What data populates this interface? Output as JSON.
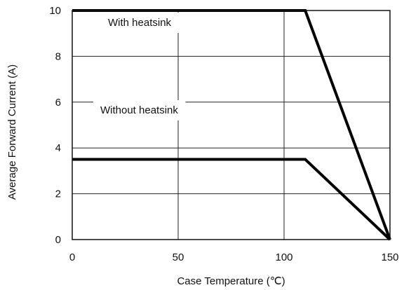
{
  "chart_data": {
    "type": "line",
    "title": "",
    "xlabel": "Case Temperature (℃)",
    "ylabel": "Average Forward Current (A)",
    "xlim": [
      0,
      150
    ],
    "ylim": [
      0,
      10
    ],
    "x_ticks": [
      0,
      50,
      100,
      150
    ],
    "y_ticks": [
      0,
      2,
      4,
      6,
      8,
      10
    ],
    "x_tick_labels": [
      "0",
      "50",
      "100",
      "150"
    ],
    "y_tick_labels": [
      "0",
      "2",
      "4",
      "6",
      "8",
      "10"
    ],
    "grid": true,
    "legend": "none",
    "series": [
      {
        "annotation": "With heatsink",
        "color": "#000000",
        "points": [
          [
            0,
            10
          ],
          [
            110,
            10
          ],
          [
            150,
            0
          ]
        ]
      },
      {
        "annotation": "Without heatsink",
        "color": "#000000",
        "points": [
          [
            0,
            3.5
          ],
          [
            110,
            3.5
          ],
          [
            150,
            0
          ]
        ]
      }
    ]
  }
}
